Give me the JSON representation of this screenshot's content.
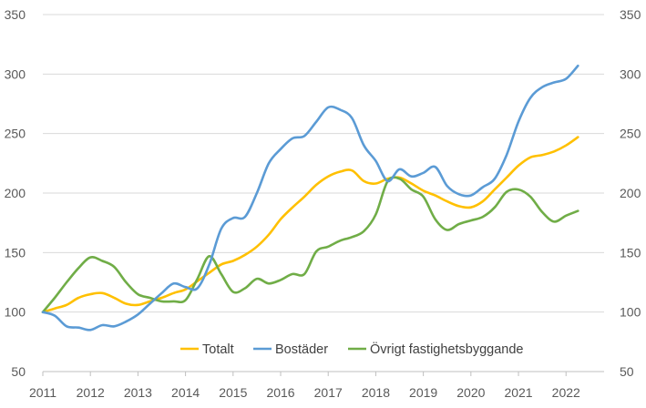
{
  "chart_data": {
    "type": "line",
    "title": "",
    "xlabel": "",
    "ylabel": "",
    "ylim": [
      50,
      350
    ],
    "y_ticks": [
      50,
      100,
      150,
      200,
      250,
      300,
      350
    ],
    "y2_ticks": [
      50,
      100,
      150,
      200,
      250,
      300,
      350
    ],
    "x_ticks": [
      "2011",
      "2012",
      "2013",
      "2014",
      "2015",
      "2016",
      "2017",
      "2018",
      "2019",
      "2020",
      "2021",
      "2022"
    ],
    "xlim": [
      2011.0,
      2022.8
    ],
    "grid": "horizontal",
    "legend_position": "bottom",
    "series": [
      {
        "name": "Totalt",
        "color": "#FFC000",
        "x": [
          2011.0,
          2011.25,
          2011.5,
          2011.75,
          2012.0,
          2012.25,
          2012.5,
          2012.75,
          2013.0,
          2013.25,
          2013.5,
          2013.75,
          2014.0,
          2014.25,
          2014.5,
          2014.75,
          2015.0,
          2015.25,
          2015.5,
          2015.75,
          2016.0,
          2016.25,
          2016.5,
          2016.75,
          2017.0,
          2017.25,
          2017.5,
          2017.75,
          2018.0,
          2018.25,
          2018.5,
          2018.75,
          2019.0,
          2019.25,
          2019.5,
          2019.75,
          2020.0,
          2020.25,
          2020.5,
          2020.75,
          2021.0,
          2021.25,
          2021.5,
          2021.75,
          2022.0,
          2022.25
        ],
        "values": [
          100,
          103,
          106,
          112,
          115,
          116,
          112,
          107,
          106,
          109,
          112,
          116,
          119,
          126,
          133,
          140,
          143,
          148,
          155,
          165,
          178,
          188,
          197,
          207,
          214,
          218,
          219,
          210,
          208,
          212,
          213,
          208,
          202,
          198,
          193,
          189,
          188,
          193,
          203,
          213,
          223,
          230,
          232,
          235,
          240,
          247
        ]
      },
      {
        "name": "Bostäder",
        "color": "#5B9BD5",
        "x": [
          2011.0,
          2011.25,
          2011.5,
          2011.75,
          2012.0,
          2012.25,
          2012.5,
          2012.75,
          2013.0,
          2013.25,
          2013.5,
          2013.75,
          2014.0,
          2014.25,
          2014.5,
          2014.75,
          2015.0,
          2015.25,
          2015.5,
          2015.75,
          2016.0,
          2016.25,
          2016.5,
          2016.75,
          2017.0,
          2017.25,
          2017.5,
          2017.75,
          2018.0,
          2018.25,
          2018.5,
          2018.75,
          2019.0,
          2019.25,
          2019.5,
          2019.75,
          2020.0,
          2020.25,
          2020.5,
          2020.75,
          2021.0,
          2021.25,
          2021.5,
          2021.75,
          2022.0,
          2022.25
        ],
        "values": [
          100,
          97,
          88,
          87,
          85,
          89,
          88,
          92,
          98,
          107,
          116,
          124,
          121,
          120,
          140,
          170,
          179,
          180,
          200,
          225,
          237,
          246,
          248,
          260,
          272,
          270,
          263,
          240,
          227,
          210,
          220,
          214,
          217,
          222,
          206,
          199,
          198,
          205,
          212,
          232,
          260,
          280,
          289,
          293,
          296,
          307
        ]
      },
      {
        "name": "Övrigt fastighetsbyggande",
        "color": "#70AD47",
        "x": [
          2011.0,
          2011.25,
          2011.5,
          2011.75,
          2012.0,
          2012.25,
          2012.5,
          2012.75,
          2013.0,
          2013.25,
          2013.5,
          2013.75,
          2014.0,
          2014.25,
          2014.5,
          2014.75,
          2015.0,
          2015.25,
          2015.5,
          2015.75,
          2016.0,
          2016.25,
          2016.5,
          2016.75,
          2017.0,
          2017.25,
          2017.5,
          2017.75,
          2018.0,
          2018.25,
          2018.5,
          2018.75,
          2019.0,
          2019.25,
          2019.5,
          2019.75,
          2020.0,
          2020.25,
          2020.5,
          2020.75,
          2021.0,
          2021.25,
          2021.5,
          2021.75,
          2022.0,
          2022.25
        ],
        "values": [
          100,
          112,
          125,
          137,
          146,
          143,
          138,
          125,
          115,
          112,
          109,
          109,
          110,
          128,
          147,
          132,
          117,
          120,
          128,
          124,
          127,
          132,
          132,
          151,
          155,
          160,
          163,
          168,
          182,
          210,
          212,
          203,
          197,
          178,
          169,
          174,
          177,
          180,
          188,
          201,
          203,
          197,
          184,
          176,
          181,
          185
        ]
      }
    ]
  }
}
